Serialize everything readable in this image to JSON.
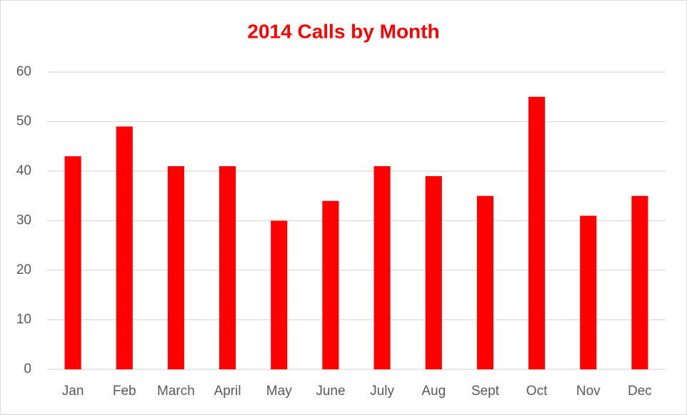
{
  "chart_data": {
    "type": "bar",
    "title": "2014 Calls by Month",
    "categories": [
      "Jan",
      "Feb",
      "March",
      "April",
      "May",
      "June",
      "July",
      "Aug",
      "Sept",
      "Oct",
      "Nov",
      "Dec"
    ],
    "values": [
      43,
      49,
      41,
      41,
      30,
      34,
      41,
      39,
      35,
      55,
      31,
      35
    ],
    "color": "#ff0000",
    "ylim": [
      0,
      60
    ],
    "yticks": [
      0,
      10,
      20,
      30,
      40,
      50,
      60
    ],
    "grid": true
  }
}
